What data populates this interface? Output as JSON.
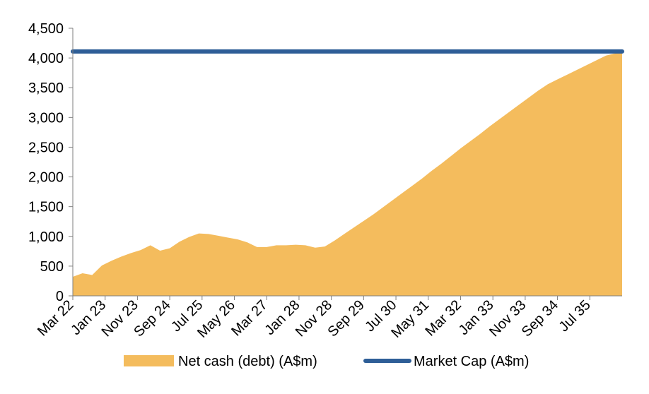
{
  "chart_data": {
    "type": "area",
    "title": "",
    "xlabel": "",
    "ylabel": "",
    "ylim": [
      0,
      4500
    ],
    "y_ticks": [
      "0",
      "500",
      "1,000",
      "1,500",
      "2,000",
      "2,500",
      "3,000",
      "3,500",
      "4,000",
      "4,500"
    ],
    "y_tick_values": [
      0,
      500,
      1000,
      1500,
      2000,
      2500,
      3000,
      3500,
      4000,
      4500
    ],
    "x_ticks": [
      "Mar 22",
      "Jan 23",
      "Nov 23",
      "Sep 24",
      "Jul 25",
      "May 26",
      "Mar 27",
      "Jan 28",
      "Nov 28",
      "Sep 29",
      "Jul 30",
      "May 31",
      "Mar 32",
      "Jan 33",
      "Nov 33",
      "Sep 34",
      "Jul 35"
    ],
    "x_tick_dates": [
      "2022-03",
      "2023-01",
      "2023-11",
      "2024-09",
      "2025-07",
      "2026-05",
      "2027-03",
      "2028-01",
      "2028-11",
      "2029-09",
      "2030-07",
      "2031-05",
      "2032-03",
      "2033-01",
      "2033-11",
      "2034-09",
      "2035-07"
    ],
    "x_end": "2036-05",
    "grid": false,
    "legend_position": "bottom",
    "series": [
      {
        "name": "Net cash (debt) (A$m)",
        "type": "area",
        "color": "#F4BC5D",
        "x": [
          "2022-03",
          "2022-06",
          "2022-09",
          "2022-12",
          "2023-03",
          "2023-06",
          "2023-09",
          "2023-12",
          "2024-03",
          "2024-06",
          "2024-09",
          "2024-12",
          "2025-03",
          "2025-06",
          "2025-09",
          "2025-12",
          "2026-03",
          "2026-06",
          "2026-09",
          "2026-12",
          "2027-03",
          "2027-06",
          "2027-09",
          "2027-12",
          "2028-03",
          "2028-06",
          "2028-09",
          "2028-12",
          "2029-03",
          "2029-06",
          "2029-09",
          "2029-12",
          "2030-03",
          "2030-06",
          "2030-09",
          "2030-12",
          "2031-03",
          "2031-06",
          "2031-09",
          "2031-12",
          "2032-03",
          "2032-06",
          "2032-09",
          "2032-12",
          "2033-03",
          "2033-06",
          "2033-09",
          "2033-12",
          "2034-03",
          "2034-06",
          "2034-09",
          "2034-12",
          "2035-03",
          "2035-06",
          "2035-09",
          "2035-12",
          "2036-03",
          "2036-05"
        ],
        "values": [
          320,
          380,
          350,
          510,
          590,
          660,
          720,
          770,
          850,
          760,
          800,
          910,
          990,
          1050,
          1040,
          1010,
          980,
          950,
          900,
          820,
          820,
          850,
          850,
          860,
          850,
          810,
          830,
          930,
          1040,
          1150,
          1260,
          1370,
          1490,
          1610,
          1730,
          1850,
          1970,
          2100,
          2220,
          2350,
          2480,
          2600,
          2720,
          2850,
          2970,
          3090,
          3210,
          3330,
          3450,
          3560,
          3640,
          3720,
          3800,
          3880,
          3960,
          4040,
          4080,
          4110
        ]
      },
      {
        "name": "Market Cap (A$m)",
        "type": "line",
        "color": "#2E5E97",
        "x": [
          "2022-03",
          "2036-05"
        ],
        "values": [
          4110,
          4110
        ]
      }
    ]
  }
}
